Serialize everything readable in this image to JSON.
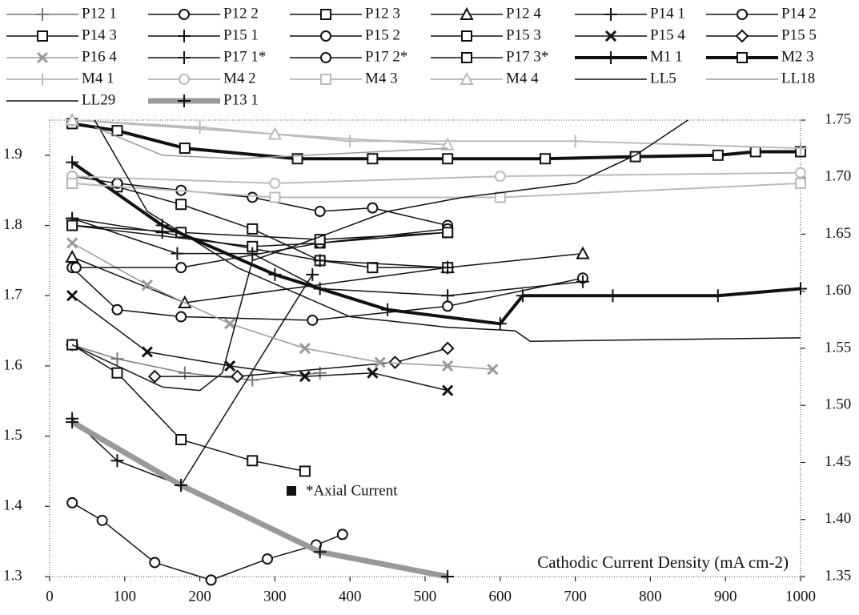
{
  "chart_data": {
    "type": "line",
    "annotations": [
      "*Axial Current",
      "Cathodic Current Density (mA cm-2)"
    ],
    "xlim": [
      0,
      1000
    ],
    "xticks": [
      0,
      100,
      200,
      300,
      400,
      500,
      600,
      700,
      800,
      900,
      1000
    ],
    "ylim": [
      1.3,
      1.95
    ],
    "yticks": [
      1.3,
      1.4,
      1.5,
      1.6,
      1.7,
      1.8,
      1.9
    ],
    "y2lim": [
      1.35,
      1.75
    ],
    "y2ticks": [
      1.35,
      {
        "value": 1.4,
        "label": "1.40"
      },
      1.45,
      {
        "value": 1.5,
        "label": "1.50"
      },
      1.55,
      {
        "value": 1.6,
        "label": "1.60"
      },
      1.65,
      {
        "value": 1.7,
        "label": "1.70"
      },
      1.75
    ],
    "series": [
      {
        "name": "P12 1",
        "color": "#777",
        "width": 1.5,
        "marker": "plus",
        "x": [
          30,
          90,
          180,
          270,
          360
        ],
        "values": [
          1.63,
          1.61,
          1.59,
          1.58,
          1.59
        ]
      },
      {
        "name": "P12 2",
        "color": "#111",
        "width": 1.5,
        "marker": "circle",
        "x": [
          30,
          70,
          140,
          215,
          290,
          355,
          390
        ],
        "values": [
          1.405,
          1.38,
          1.32,
          1.295,
          1.325,
          1.345,
          1.36
        ]
      },
      {
        "name": "P12 3",
        "color": "#111",
        "width": 1.5,
        "marker": "square",
        "x": [
          30,
          90,
          175,
          270,
          340
        ],
        "values": [
          1.63,
          1.59,
          1.495,
          1.465,
          1.45
        ]
      },
      {
        "name": "P12 4",
        "color": "#111",
        "width": 1.5,
        "marker": "triangle",
        "x": [
          30,
          180,
          530,
          710
        ],
        "values": [
          1.755,
          1.69,
          1.74,
          1.76
        ]
      },
      {
        "name": "P14 1",
        "color": "#111",
        "width": 1.5,
        "marker": "plus",
        "x": [
          30,
          90,
          175,
          350
        ],
        "values": [
          1.525,
          1.465,
          1.43,
          1.73
        ]
      },
      {
        "name": "P14 2",
        "color": "#111",
        "width": 1.5,
        "marker": "circle",
        "x": [
          30,
          90,
          175,
          350,
          530,
          710
        ],
        "values": [
          1.74,
          1.68,
          1.67,
          1.665,
          1.685,
          1.725
        ]
      },
      {
        "name": "P14 3",
        "color": "#111",
        "width": 1.5,
        "marker": "square",
        "x": [
          30,
          90,
          175,
          270,
          360,
          430,
          530
        ],
        "values": [
          1.86,
          1.855,
          1.83,
          1.795,
          1.75,
          1.74,
          1.74
        ]
      },
      {
        "name": "P15 1",
        "color": "#111",
        "width": 1.5,
        "marker": "plus",
        "x": [
          30,
          150,
          360,
          530
        ],
        "values": [
          1.81,
          1.79,
          1.75,
          1.74
        ]
      },
      {
        "name": "P15 2",
        "color": "#111",
        "width": 1.5,
        "marker": "circle",
        "x": [
          30,
          90,
          175,
          270,
          360,
          430,
          530
        ],
        "values": [
          1.87,
          1.86,
          1.85,
          1.84,
          1.82,
          1.825,
          1.8
        ]
      },
      {
        "name": "P15 3",
        "color": "#111",
        "width": 1.5,
        "marker": "square",
        "x": [
          30,
          270,
          360,
          530
        ],
        "values": [
          1.8,
          1.77,
          1.775,
          1.79
        ]
      },
      {
        "name": "P15 4",
        "color": "#111",
        "width": 1.5,
        "marker": "cross",
        "x": [
          30,
          130,
          240,
          340,
          430,
          530
        ],
        "values": [
          1.7,
          1.62,
          1.6,
          1.585,
          1.59,
          1.565
        ]
      },
      {
        "name": "P15 5",
        "color": "#111",
        "width": 1.5,
        "marker": "diamond",
        "x": [
          140,
          250,
          460,
          530
        ],
        "values": [
          1.585,
          1.585,
          1.605,
          1.625
        ]
      },
      {
        "name": "P16 4",
        "color": "#999",
        "width": 1.5,
        "marker": "cross",
        "x": [
          30,
          130,
          240,
          340,
          440,
          530,
          590
        ],
        "values": [
          1.775,
          1.715,
          1.66,
          1.625,
          1.605,
          1.6,
          1.595
        ]
      },
      {
        "name": "P17 1*",
        "color": "#111",
        "width": 1.5,
        "marker": "plus",
        "x": [
          30,
          170,
          270,
          360,
          530,
          710
        ],
        "values": [
          1.81,
          1.76,
          1.76,
          1.71,
          1.7,
          1.72
        ]
      },
      {
        "name": "P17 2*",
        "color": "#111",
        "width": 1.5,
        "marker": "circle",
        "x": [
          35,
          175,
          360,
          530
        ],
        "values": [
          1.74,
          1.74,
          1.775,
          1.795
        ]
      },
      {
        "name": "P17 3*",
        "color": "#111",
        "width": 1.5,
        "marker": "square",
        "x": [
          30,
          175,
          360,
          530
        ],
        "values": [
          1.8,
          1.79,
          1.78,
          1.79
        ]
      },
      {
        "name": "M1 1",
        "color": "#111",
        "width": 4,
        "marker": "plus",
        "x": [
          30,
          150,
          300,
          450,
          600,
          630,
          750,
          890,
          1000
        ],
        "values": [
          1.89,
          1.8,
          1.73,
          1.68,
          1.66,
          1.7,
          1.7,
          1.7,
          1.71
        ]
      },
      {
        "name": "M2 3",
        "color": "#111",
        "width": 4,
        "marker": "square",
        "x": [
          30,
          90,
          180,
          330,
          430,
          530,
          660,
          780,
          890,
          940,
          1000
        ],
        "values": [
          1.945,
          1.935,
          1.91,
          1.895,
          1.895,
          1.895,
          1.895,
          1.898,
          1.9,
          1.905,
          1.905
        ]
      },
      {
        "name": "M4 1",
        "color": "#bbb",
        "width": 2,
        "marker": "plus",
        "x": [
          30,
          200,
          400,
          700,
          1000
        ],
        "values": [
          1.95,
          1.94,
          1.92,
          1.92,
          1.91
        ]
      },
      {
        "name": "M4 2",
        "color": "#bbb",
        "width": 2,
        "marker": "circle",
        "x": [
          30,
          300,
          600,
          1000
        ],
        "values": [
          1.87,
          1.86,
          1.87,
          1.875
        ]
      },
      {
        "name": "M4 3",
        "color": "#bbb",
        "width": 2,
        "marker": "square",
        "x": [
          30,
          300,
          600,
          1000
        ],
        "values": [
          1.86,
          1.84,
          1.84,
          1.86
        ]
      },
      {
        "name": "M4 4",
        "color": "#bbb",
        "width": 2,
        "marker": "triangle",
        "x": [
          30,
          300,
          530
        ],
        "values": [
          1.95,
          1.93,
          1.915
        ]
      },
      {
        "name": "LL5",
        "color": "#111",
        "width": 1.5,
        "marker": "none",
        "x": [
          60,
          130,
          250,
          400,
          530,
          620,
          640,
          1000
        ],
        "values": [
          1.95,
          1.82,
          1.74,
          1.67,
          1.655,
          1.65,
          1.635,
          1.64
        ]
      },
      {
        "name": "LL18",
        "color": "#999",
        "width": 1.5,
        "marker": "none",
        "x": [
          60,
          150,
          250,
          530
        ],
        "values": [
          1.94,
          1.9,
          1.895,
          1.91
        ]
      },
      {
        "name": "LL29",
        "color": "#111",
        "width": 1.5,
        "marker": "none",
        "x": [
          30,
          150,
          200,
          230,
          270,
          350,
          450,
          550,
          700,
          780,
          850
        ],
        "values": [
          1.63,
          1.57,
          1.565,
          1.59,
          1.75,
          1.78,
          1.82,
          1.84,
          1.86,
          1.9,
          1.95
        ]
      },
      {
        "name": "P13 1",
        "color": "#999",
        "width": 7,
        "marker": "plus",
        "x": [
          30,
          175,
          360,
          530
        ],
        "values": [
          1.52,
          1.43,
          1.335,
          1.3
        ]
      }
    ]
  }
}
